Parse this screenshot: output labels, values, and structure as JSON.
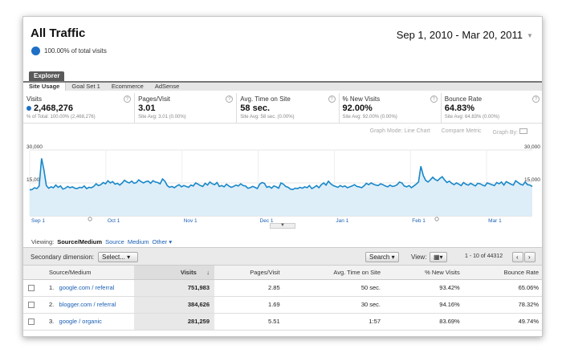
{
  "header": {
    "title": "All Traffic",
    "date_range": "Sep 1, 2010 - Mar 20, 2011",
    "pct_total": "100.00% of total visits"
  },
  "explorer": {
    "tab": "Explorer",
    "subtabs": [
      "Site Usage",
      "Goal Set 1",
      "Ecommerce",
      "AdSense"
    ]
  },
  "metrics": [
    {
      "label": "Visits",
      "value": "2,468,276",
      "sub": "% of Total: 100.00% (2,468,276)"
    },
    {
      "label": "Pages/Visit",
      "value": "3.01",
      "sub": "Site Avg: 3.01 (0.00%)"
    },
    {
      "label": "Avg. Time on Site",
      "value": "58 sec.",
      "sub": "Site Avg: 58 sec. (0.00%)"
    },
    {
      "label": "% New Visits",
      "value": "92.00%",
      "sub": "Site Avg: 92.00% (0.00%)"
    },
    {
      "label": "Bounce Rate",
      "value": "64.83%",
      "sub": "Site Avg: 64.83% (0.00%)"
    }
  ],
  "graph_options": {
    "mode_label": "Graph Mode:",
    "mode_value": "Line Chart",
    "compare": "Compare Metric",
    "graph_by": "Graph By:"
  },
  "chart_data": {
    "type": "area",
    "y_ticks": [
      "30,000",
      "15,000"
    ],
    "ylim": [
      0,
      30000
    ],
    "x_labels": [
      "Sep 1",
      "Oct 1",
      "Nov 1",
      "Dec 1",
      "Jan 1",
      "Feb 1",
      "Mar 1"
    ],
    "color": "#1a87c8",
    "fill": "#ddeef9",
    "values": [
      11800,
      12000,
      12800,
      12400,
      13600,
      26200,
      21000,
      13800,
      12600,
      13200,
      12800,
      14000,
      13000,
      13600,
      12200,
      12600,
      13400,
      12800,
      13200,
      12600,
      12400,
      13000,
      12800,
      13600,
      12400,
      13000,
      12800,
      13400,
      14600,
      13800,
      14200,
      15200,
      14600,
      16000,
      15000,
      15600,
      14400,
      14800,
      14000,
      15000,
      16200,
      15400,
      15000,
      15800,
      14800,
      15200,
      16400,
      15600,
      15000,
      15600,
      15800,
      14800,
      16000,
      15400,
      15200,
      14600,
      16800,
      15800,
      13800,
      13000,
      13400,
      12800,
      13600,
      14200,
      13200,
      13800,
      13400,
      13000,
      14000,
      13600,
      15000,
      14400,
      13800,
      13400,
      14800,
      14000,
      15400,
      14600,
      14200,
      15200,
      13400,
      13800,
      13200,
      14400,
      13600,
      13000,
      13400,
      14000,
      13600,
      14600,
      13800,
      13600,
      12600,
      12800,
      13400,
      13000,
      12400,
      14400,
      15200,
      14800,
      13000,
      13400,
      12600,
      13600,
      13200,
      12600,
      15000,
      14400,
      13400,
      13000,
      12200,
      12000,
      12600,
      12400,
      13000,
      12600,
      13200,
      12800,
      13800,
      12400,
      13000,
      13800,
      12800,
      14200,
      15000,
      14000,
      15800,
      14600,
      13800,
      13400,
      13000,
      13800,
      13200,
      13600,
      12800,
      13200,
      13600,
      14200,
      13400,
      13200,
      12800,
      13600,
      14800,
      14200,
      15000,
      14400,
      14000,
      13800,
      14600,
      14200,
      13600,
      13200,
      14000,
      13400,
      13600,
      14200,
      15400,
      15000,
      13600,
      13200,
      13800,
      12800,
      13600,
      14400,
      15400,
      22600,
      18400,
      16200,
      15400,
      16400,
      17600,
      16600,
      16000,
      17000,
      17800,
      16400,
      15200,
      15800,
      14800,
      14200,
      15000,
      14400,
      13800,
      15200,
      14400,
      14000,
      14800,
      14200,
      13600,
      14800,
      14600,
      14000,
      13600,
      15000,
      14600,
      14200,
      13800,
      15200,
      14600,
      15400,
      14000,
      15600,
      15000,
      14400,
      14000,
      16000,
      15200,
      14400,
      14000,
      15400,
      14200,
      14000,
      13400
    ]
  },
  "viewing": {
    "label": "Viewing:",
    "selected": "Source/Medium",
    "options": [
      "Source",
      "Medium",
      "Other"
    ]
  },
  "toolbar": {
    "secondary_label": "Secondary dimension:",
    "select_label": "Select...",
    "search_label": "Search",
    "view_label": "View:",
    "paging": "1 - 10 of 44312"
  },
  "table": {
    "headers": [
      "Source/Medium",
      "Visits",
      "Pages/Visit",
      "Avg. Time on Site",
      "% New Visits",
      "Bounce Rate"
    ],
    "rows": [
      {
        "num": "1.",
        "source": "google.com / referral",
        "visits": "751,983",
        "ppv": "2.85",
        "time": "50 sec.",
        "new": "93.42%",
        "bounce": "65.06%"
      },
      {
        "num": "2.",
        "source": "blogger.com / referral",
        "visits": "384,626",
        "ppv": "1.69",
        "time": "30 sec.",
        "new": "94.16%",
        "bounce": "78.32%"
      },
      {
        "num": "3.",
        "source": "google / organic",
        "visits": "281,259",
        "ppv": "5.51",
        "time": "1:57",
        "new": "83.69%",
        "bounce": "49.74%"
      }
    ]
  }
}
